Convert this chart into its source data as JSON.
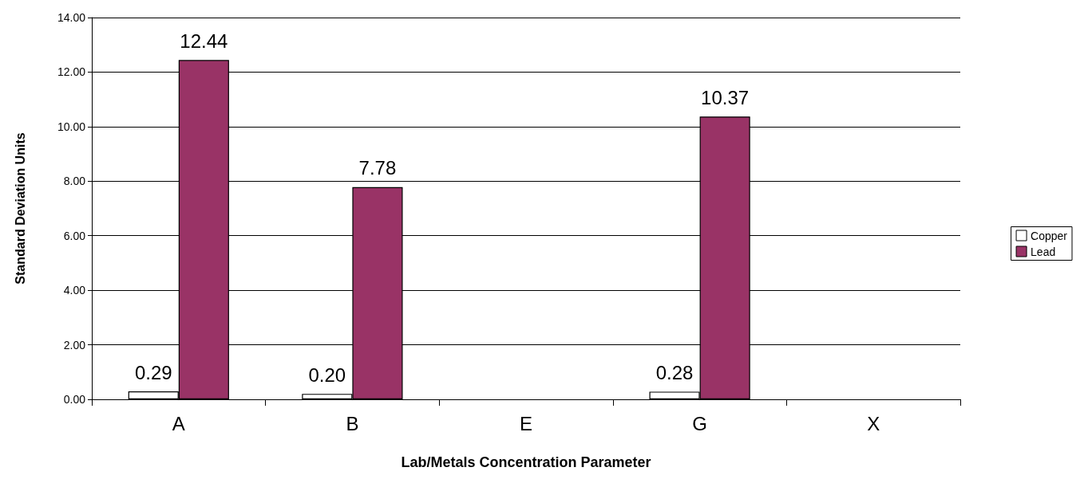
{
  "chart_data": {
    "type": "bar",
    "xlabel": "Lab/Metals Concentration Parameter",
    "ylabel": "Standard Deviation Units",
    "categories": [
      "A",
      "B",
      "E",
      "G",
      "X"
    ],
    "series": [
      {
        "name": "Copper",
        "color": "#ffffff",
        "values": [
          0.29,
          0.2,
          null,
          0.28,
          null
        ],
        "value_labels": [
          "0.29",
          "0.20",
          null,
          "0.28",
          null
        ]
      },
      {
        "name": "Lead",
        "color": "#993366",
        "values": [
          12.44,
          7.78,
          null,
          10.37,
          null
        ],
        "value_labels": [
          "12.44",
          "7.78",
          null,
          "10.37",
          null
        ]
      }
    ],
    "ylim": [
      0,
      14
    ],
    "yticks": [
      {
        "value": 0,
        "label": "0.00"
      },
      {
        "value": 2,
        "label": "2.00"
      },
      {
        "value": 4,
        "label": "4.00"
      },
      {
        "value": 6,
        "label": "6.00"
      },
      {
        "value": 8,
        "label": "8.00"
      },
      {
        "value": 10,
        "label": "10.00"
      },
      {
        "value": 12,
        "label": "12.00"
      },
      {
        "value": 14,
        "label": "14.00"
      }
    ],
    "grid": "y",
    "legend": "right"
  }
}
